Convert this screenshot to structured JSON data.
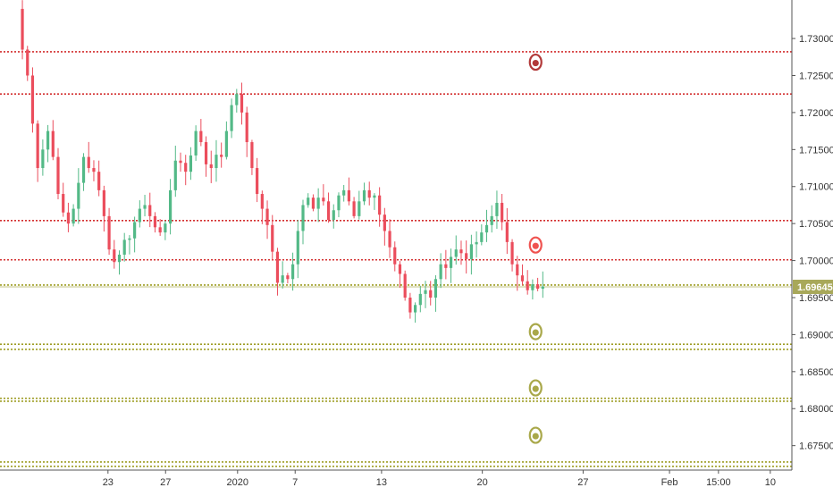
{
  "chart_data": {
    "type": "candlestick",
    "ylim": [
      1.6717,
      1.7352
    ],
    "grid": false,
    "y_ticks": [
      "1.73000",
      "1.72500",
      "1.72000",
      "1.71500",
      "1.71000",
      "1.70500",
      "1.70000",
      "1.69500",
      "1.69000",
      "1.68500",
      "1.68000",
      "1.67500"
    ],
    "y_tick_values": [
      1.73,
      1.725,
      1.72,
      1.715,
      1.71,
      1.705,
      1.7,
      1.695,
      1.69,
      1.685,
      1.68,
      1.675
    ],
    "x_ticks": [
      "23",
      "27",
      "2020",
      "7",
      "13",
      "20",
      "27",
      "Feb",
      "15:00",
      "10"
    ],
    "x_tick_positions": [
      0,
      4,
      9,
      13,
      19,
      26,
      33,
      39,
      42.4,
      46
    ],
    "x_range": [
      -7.5,
      47.5
    ],
    "price_label": "1.69645",
    "current_price": 1.69645,
    "colors": {
      "up": "#53b987",
      "down": "#eb4d5c",
      "red_level": "#d32f2f",
      "olive_level": "#9e9d24",
      "price_line": "#c5c48a",
      "price_label_bg": "#a8a85a",
      "marker_red_dark": "#b23a3a",
      "marker_red": "#ef5350",
      "marker_olive": "#a9a84a"
    },
    "red_levels": [
      1.7282,
      1.7225,
      1.7054,
      1.7001
    ],
    "olive_levels": [
      1.6967,
      1.6887,
      1.688,
      1.6814,
      1.681,
      1.6728,
      1.6722
    ],
    "markers": [
      {
        "day": 29.7,
        "price": 1.7268,
        "color": "marker_red_dark"
      },
      {
        "day": 29.7,
        "price": 1.7021,
        "color": "marker_red"
      },
      {
        "day": 29.7,
        "price": 1.6904,
        "color": "marker_olive"
      },
      {
        "day": 29.7,
        "price": 1.6828,
        "color": "marker_olive"
      },
      {
        "day": 29.7,
        "price": 1.6764,
        "color": "marker_olive"
      }
    ],
    "series_close": [
      1.734,
      1.7285,
      1.725,
      1.7185,
      1.7125,
      1.715,
      1.7175,
      1.714,
      1.709,
      1.7065,
      1.705,
      1.707,
      1.7105,
      1.714,
      1.7125,
      1.712,
      1.7095,
      1.706,
      1.7015,
      1.6998,
      1.7008,
      1.7028,
      1.703,
      1.7052,
      1.707,
      1.7075,
      1.706,
      1.7045,
      1.7038,
      1.705,
      1.7095,
      1.7135,
      1.7132,
      1.712,
      1.7142,
      1.7175,
      1.716,
      1.713,
      1.7125,
      1.7143,
      1.714,
      1.7175,
      1.721,
      1.7225,
      1.72,
      1.716,
      1.7125,
      1.709,
      1.707,
      1.7048,
      1.7012,
      1.697,
      1.698,
      1.6975,
      1.6995,
      1.704,
      1.7075,
      1.7085,
      1.707,
      1.7085,
      1.708,
      1.7055,
      1.7068,
      1.7088,
      1.7095,
      1.708,
      1.706,
      1.708,
      1.7095,
      1.7085,
      1.7088,
      1.7062,
      1.704,
      1.7018,
      1.6995,
      1.6982,
      1.695,
      1.693,
      1.694,
      1.6955,
      1.696,
      1.695,
      1.6975,
      1.6995,
      1.699,
      1.7005,
      1.7015,
      1.701,
      1.7002,
      1.7022,
      1.7025,
      1.7038,
      1.7048,
      1.706,
      1.7078,
      1.7052,
      1.7025,
      1.6995,
      1.698,
      1.6972,
      1.696,
      1.6968,
      1.6962,
      1.6965
    ]
  }
}
